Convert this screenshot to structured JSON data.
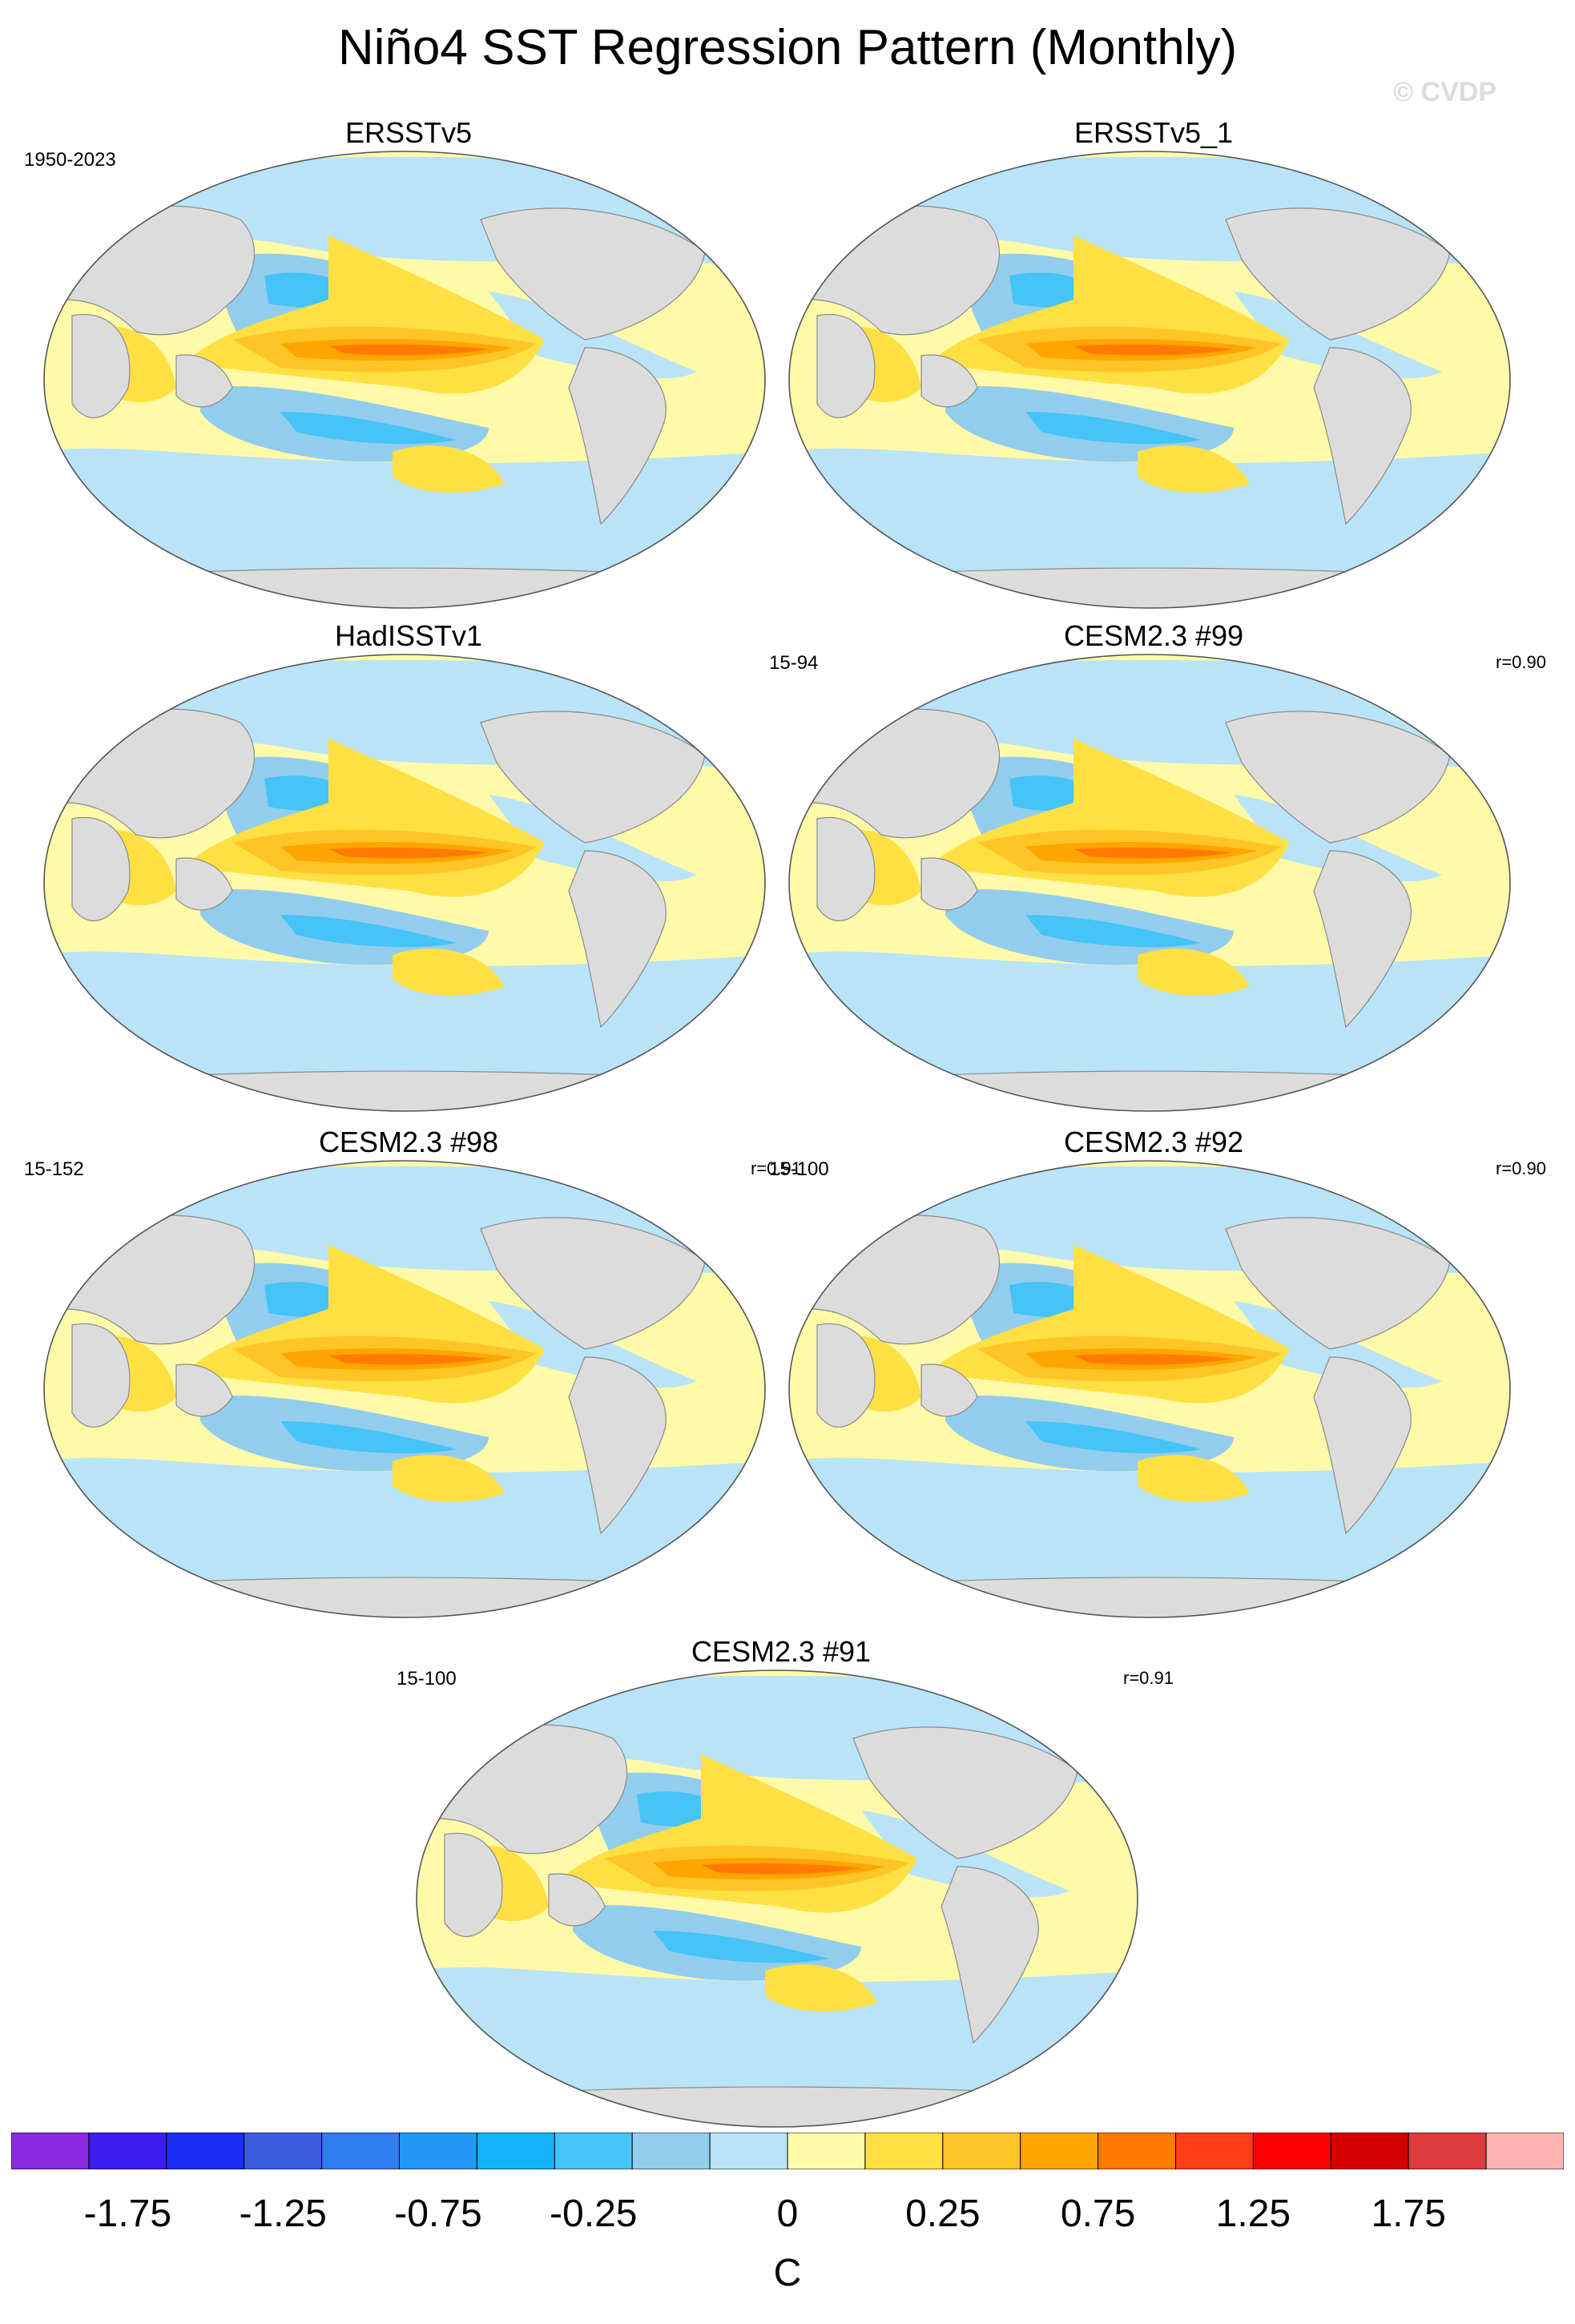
{
  "title": "Niño4 SST Regression Pattern (Monthly)",
  "watermark": "© CVDP",
  "panels": [
    {
      "title": "ERSSTv5",
      "left_label": "1950-2023",
      "right_label": ""
    },
    {
      "title": "ERSSTv5_1",
      "left_label": "",
      "right_label": ""
    },
    {
      "title": "HadISSTv1",
      "left_label": "",
      "right_label": ""
    },
    {
      "title": "CESM2.3 #99",
      "left_label": "15-94",
      "right_label": "r=0.90"
    },
    {
      "title": "CESM2.3 #98",
      "left_label": "15-152",
      "right_label": "r=0.91"
    },
    {
      "title": "CESM2.3 #92",
      "left_label": "15-100",
      "right_label": "r=0.90"
    },
    {
      "title": "CESM2.3 #91",
      "left_label": "15-100",
      "right_label": "r=0.91"
    }
  ],
  "colorbar": {
    "units": "C",
    "colors": [
      "#8a2be2",
      "#3b1cf0",
      "#1a2df5",
      "#3a5de0",
      "#2f7df0",
      "#2297f5",
      "#14b4fa",
      "#46c3f7",
      "#93cdee",
      "#b9e3f7",
      "#fffaa8",
      "#ffe043",
      "#ffc527",
      "#ffa500",
      "#ff7b00",
      "#ff3d17",
      "#ff0000",
      "#d40000",
      "#dc3c3c",
      "#ffb4b4"
    ],
    "labels": [
      "-1.75",
      "-1.25",
      "-0.75",
      "-0.25",
      "0",
      "0.25",
      "0.75",
      "1.25",
      "1.75"
    ]
  }
}
